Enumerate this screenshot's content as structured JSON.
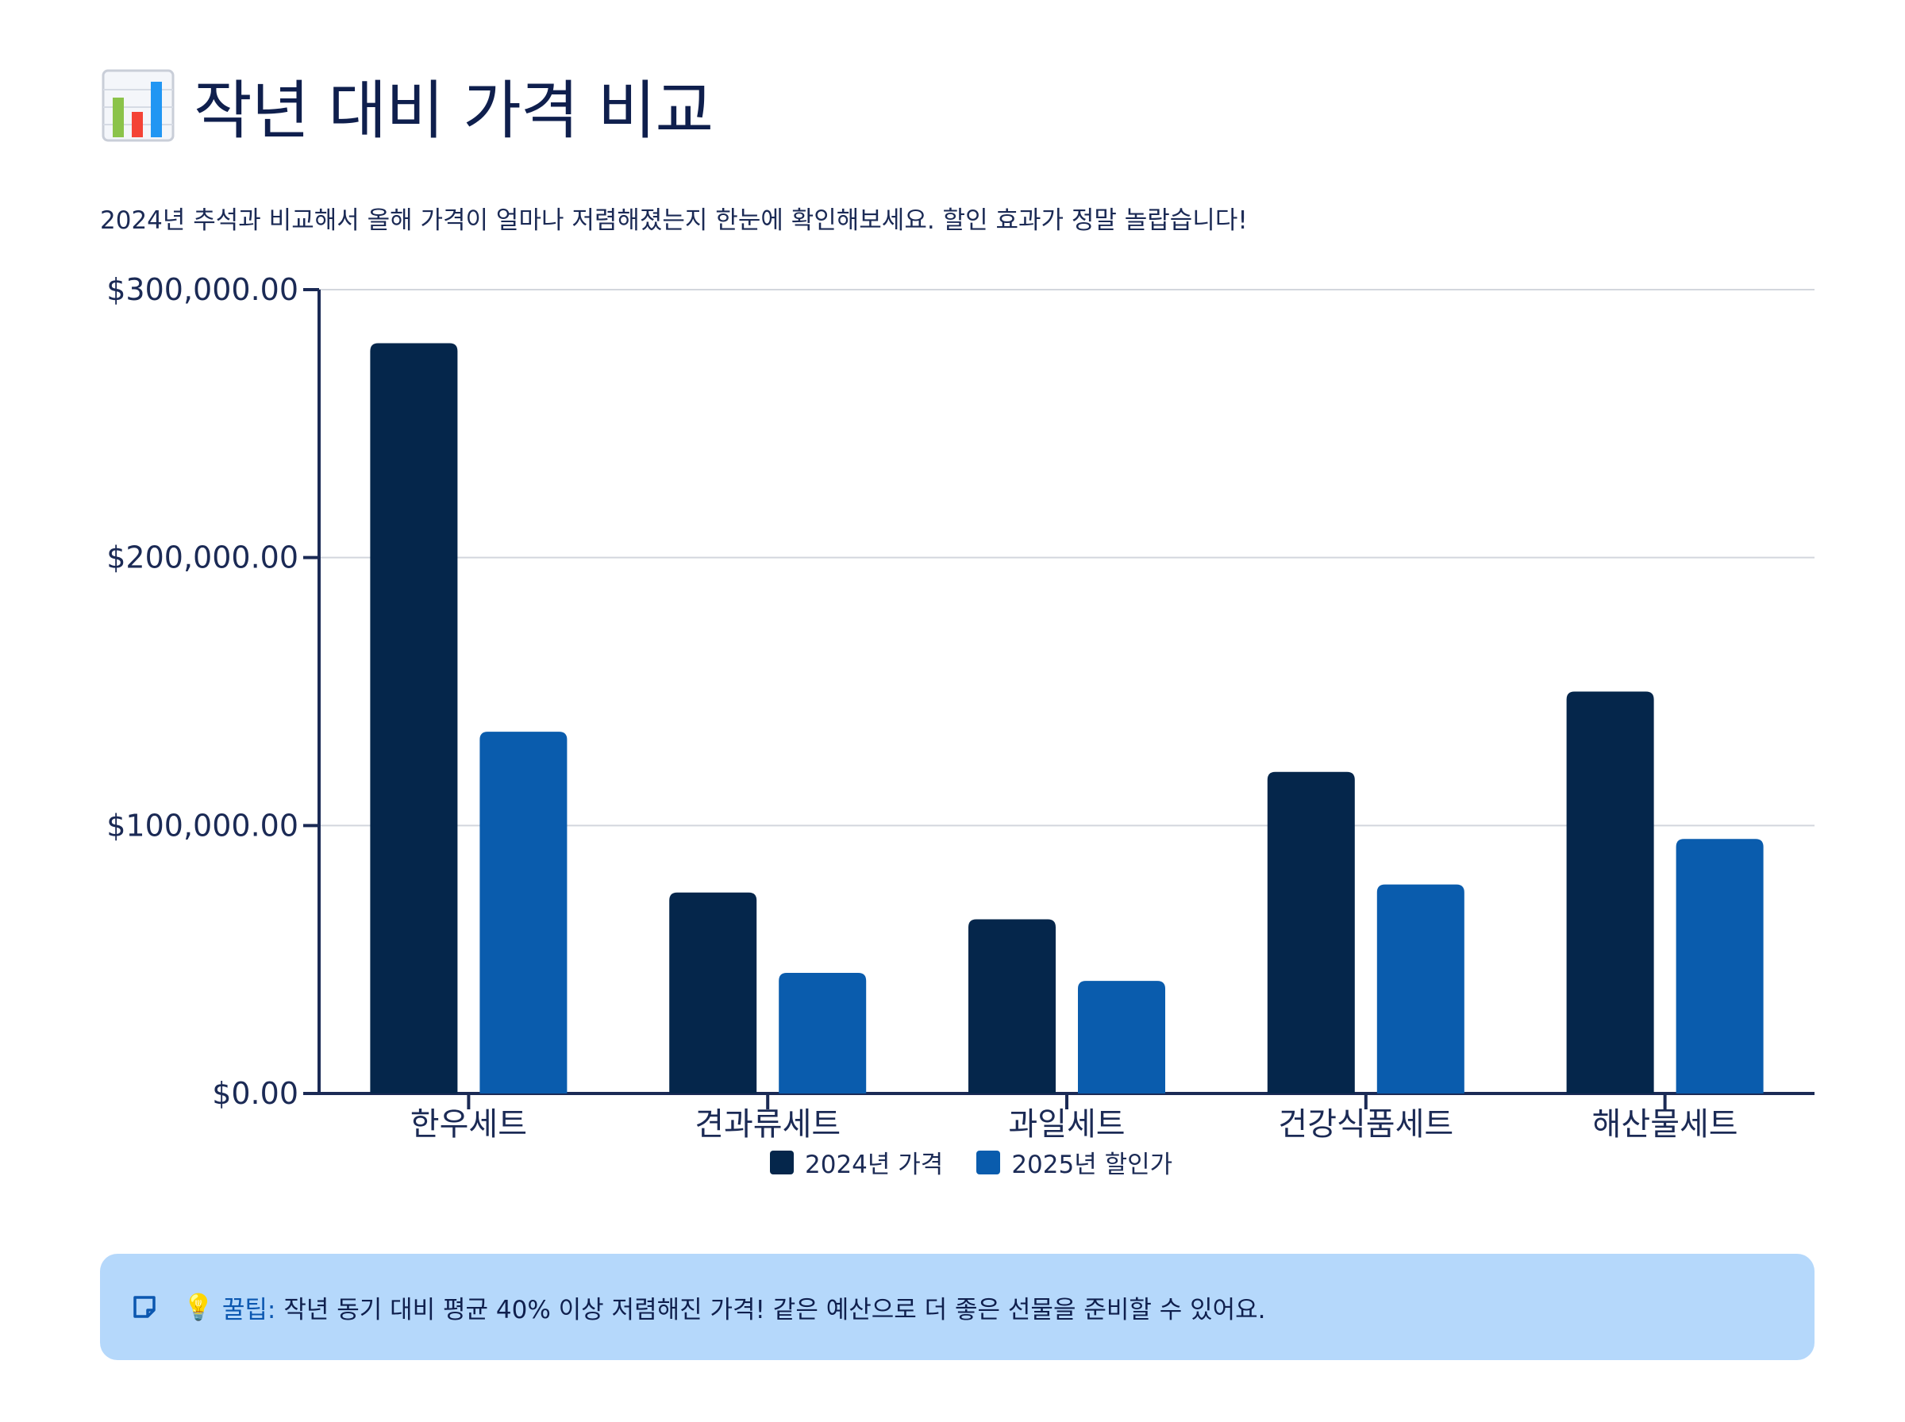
{
  "header": {
    "title_icon": "bar-chart-icon",
    "title": "작년 대비 가격 비교",
    "subtitle": "2024년 추석과 비교해서 올해 가격이 얼마나 저렴해졌는지 한눈에 확인해보세요. 할인 효과가 정말 놀랍습니다!"
  },
  "chart_data": {
    "type": "bar",
    "title": "",
    "xlabel": "",
    "ylabel": "",
    "categories": [
      "한우세트",
      "견과류세트",
      "과일세트",
      "건강식품세트",
      "해산물세트"
    ],
    "series": [
      {
        "name": "2024년 가격",
        "color": "#05264b",
        "values": [
          280000,
          75000,
          65000,
          120000,
          150000
        ]
      },
      {
        "name": "2025년 할인가",
        "color": "#0a5cad",
        "values": [
          135000,
          45000,
          42000,
          78000,
          95000
        ]
      }
    ],
    "ylim": [
      0,
      300000
    ],
    "yticks": [
      0,
      100000,
      200000,
      300000
    ],
    "ytick_labels": [
      "$0.00",
      "$100,000.00",
      "$200,000.00",
      "$300,000.00"
    ],
    "grid": true,
    "legend_position": "bottom-center"
  },
  "tip": {
    "note_icon": "note-icon",
    "bulb_icon": "lightbulb-icon",
    "label": "꿀팁:",
    "text": "작년 동기 대비 평균 40% 이상 저렴해진 가격! 같은 예산으로 더 좋은 선물을 준비할 수 있어요."
  }
}
